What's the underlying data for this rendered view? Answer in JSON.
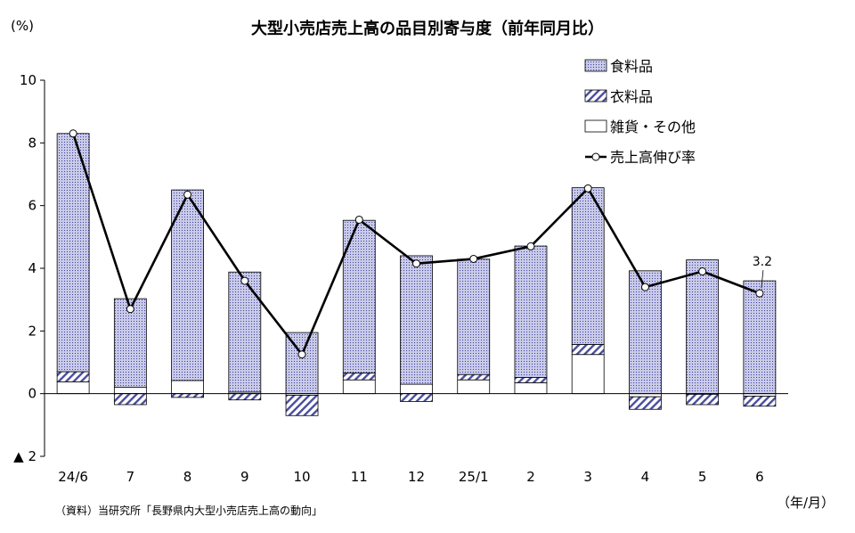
{
  "chart_data": {
    "type": "bar",
    "title": "大型小売店売上高の品目別寄与度（前年同月比）",
    "y_unit_label": "(%)",
    "x_unit_label": "（年/月）",
    "source": "（資料）当研究所「長野県内大型小売店売上高の動向」",
    "categories": [
      "24/6",
      "7",
      "8",
      "9",
      "10",
      "11",
      "12",
      "25/1",
      "2",
      "3",
      "4",
      "5",
      "6"
    ],
    "ylim": [
      -2,
      10
    ],
    "yticks": [
      -2,
      0,
      2,
      4,
      6,
      8,
      10
    ],
    "ytick_labels": [
      "▲ 2",
      "0",
      "2",
      "4",
      "6",
      "8",
      "10"
    ],
    "stacked": true,
    "series": [
      {
        "name": "雑貨・その他",
        "kind": "bar",
        "pattern": "plain",
        "values": [
          0.38,
          0.2,
          0.42,
          0.05,
          -0.05,
          0.44,
          0.3,
          0.44,
          0.35,
          1.25,
          -0.1,
          -0.02,
          -0.08
        ]
      },
      {
        "name": "衣料品",
        "kind": "bar",
        "pattern": "diagonal",
        "values": [
          0.32,
          -0.35,
          -0.12,
          -0.2,
          -0.65,
          0.22,
          -0.25,
          0.17,
          0.17,
          0.32,
          -0.4,
          -0.33,
          -0.32
        ]
      },
      {
        "name": "食料品",
        "kind": "bar",
        "pattern": "dots",
        "values": [
          7.6,
          2.83,
          6.08,
          3.83,
          1.95,
          4.87,
          4.1,
          3.68,
          4.19,
          5.0,
          3.92,
          4.27,
          3.6
        ]
      },
      {
        "name": "売上高伸び率",
        "kind": "line",
        "values": [
          8.3,
          2.7,
          6.35,
          3.6,
          1.25,
          5.55,
          4.15,
          4.3,
          4.7,
          6.55,
          3.4,
          3.9,
          3.2
        ]
      }
    ],
    "annotations": [
      {
        "category": "6",
        "text": "3.2"
      }
    ],
    "legend_position": "top-right",
    "grid": false,
    "colors": {
      "food_fill": "#c9cae8",
      "food_dot": "#3c3f9c",
      "clothing_stripe": "#4a4d9e",
      "other_fill": "#ffffff",
      "line": "#000000",
      "axis": "#000000"
    }
  }
}
